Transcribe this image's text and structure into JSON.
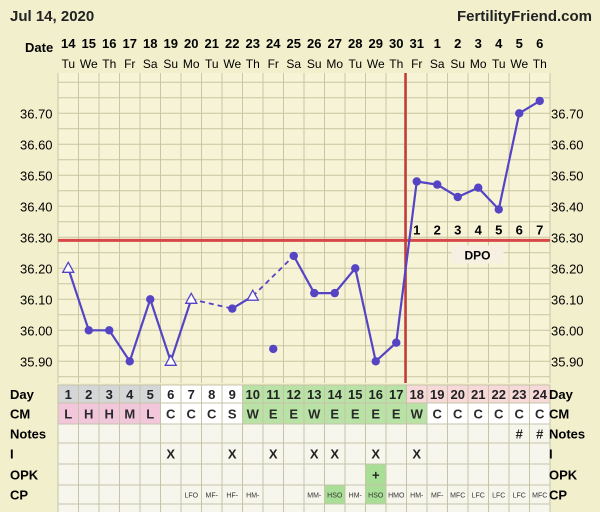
{
  "header": {
    "date": "Jul 14, 2020",
    "site": "FertilityFriend.com"
  },
  "chart_data": {
    "type": "line",
    "title": "",
    "date_row_label": "Date",
    "dates": [
      "14",
      "15",
      "16",
      "17",
      "18",
      "19",
      "20",
      "21",
      "22",
      "23",
      "24",
      "25",
      "26",
      "27",
      "28",
      "29",
      "30",
      "31",
      "1",
      "2",
      "3",
      "4",
      "5",
      "6"
    ],
    "weekdays": [
      "Tu",
      "We",
      "Th",
      "Fr",
      "Sa",
      "Su",
      "Mo",
      "Tu",
      "We",
      "Th",
      "Fr",
      "Sa",
      "Su",
      "Mo",
      "Tu",
      "We",
      "Th",
      "Fr",
      "Sa",
      "Su",
      "Mo",
      "Tu",
      "We",
      "Th"
    ],
    "y_ticks": [
      "36.70",
      "36.60",
      "36.50",
      "36.40",
      "36.30",
      "36.20",
      "36.10",
      "36.00",
      "35.90"
    ],
    "ylim": [
      35.83,
      36.83
    ],
    "temperatures": [
      36.2,
      36.0,
      36.0,
      35.9,
      36.1,
      35.9,
      36.1,
      null,
      36.07,
      36.11,
      35.94,
      36.24,
      36.12,
      36.12,
      36.2,
      35.9,
      35.96,
      36.48,
      36.47,
      36.43,
      36.46,
      36.39,
      36.7,
      36.74
    ],
    "open_markers": [
      0,
      5,
      6,
      9
    ],
    "connected_solid": [
      [
        0,
        1,
        2,
        3,
        4,
        5,
        6
      ],
      [
        8,
        9
      ],
      [
        11,
        12,
        13,
        14,
        15,
        16,
        17,
        18,
        19,
        20,
        21,
        22,
        23
      ]
    ],
    "connected_dashed": [
      [
        6,
        8
      ],
      [
        9,
        11
      ]
    ],
    "coverline": 36.29,
    "ovulation_day_index": 16,
    "dpo_numbers": [
      "1",
      "2",
      "3",
      "4",
      "5",
      "6",
      "7"
    ],
    "dpo_label": "DPO",
    "day_label": "Day",
    "days": [
      "1",
      "2",
      "3",
      "4",
      "5",
      "6",
      "7",
      "8",
      "9",
      "10",
      "11",
      "12",
      "13",
      "14",
      "15",
      "16",
      "17",
      "18",
      "19",
      "20",
      "21",
      "22",
      "23",
      "24"
    ],
    "cm_label": "CM",
    "cm": [
      "L",
      "H",
      "H",
      "M",
      "L",
      "C",
      "C",
      "C",
      "S",
      "W",
      "E",
      "E",
      "W",
      "E",
      "E",
      "E",
      "E",
      "W",
      "C",
      "C",
      "C",
      "C",
      "C",
      "C"
    ],
    "notes_label": "Notes",
    "notes": [
      "",
      "",
      "",
      "",
      "",
      "",
      "",
      "",
      "",
      "",
      "",
      "",
      "",
      "",
      "",
      "",
      "",
      "",
      "",
      "",
      "",
      "",
      "#",
      "#"
    ],
    "i_label": "I",
    "intercourse": [
      "",
      "",
      "",
      "",
      "",
      "X",
      "",
      "",
      "X",
      "",
      "X",
      "",
      "X",
      "X",
      "",
      "X",
      "",
      "X",
      "",
      "",
      "",
      "",
      "",
      ""
    ],
    "opk_label": "OPK",
    "opk": [
      "",
      "",
      "",
      "",
      "",
      "",
      "",
      "",
      "",
      "",
      "",
      "",
      "",
      "",
      "",
      "+",
      "",
      "",
      "",
      "",
      "",
      "",
      "",
      ""
    ],
    "cp_label": "CP",
    "cp": [
      "",
      "",
      "",
      "",
      "",
      "",
      "LFO",
      "MF-",
      "HF-",
      "HM-",
      "",
      "",
      "MM-",
      "HSO",
      "HM-",
      "HSO",
      "HMO",
      "HM-",
      "MF-",
      "MFC",
      "LFC",
      "LFC",
      "LFC",
      "MFC"
    ]
  },
  "colors": {
    "line": "#5544c4",
    "coverline": "#d94848",
    "ovulation": "#c43a3a",
    "grid": "#c9c6a2",
    "plot_bg": "#f6f3d7",
    "period": "#f2c7dc",
    "fertile": "#b9e3a6",
    "luteal": "#f7d9d9",
    "opk_bg": "#a8de95",
    "page_bg": "#f2efcc"
  }
}
